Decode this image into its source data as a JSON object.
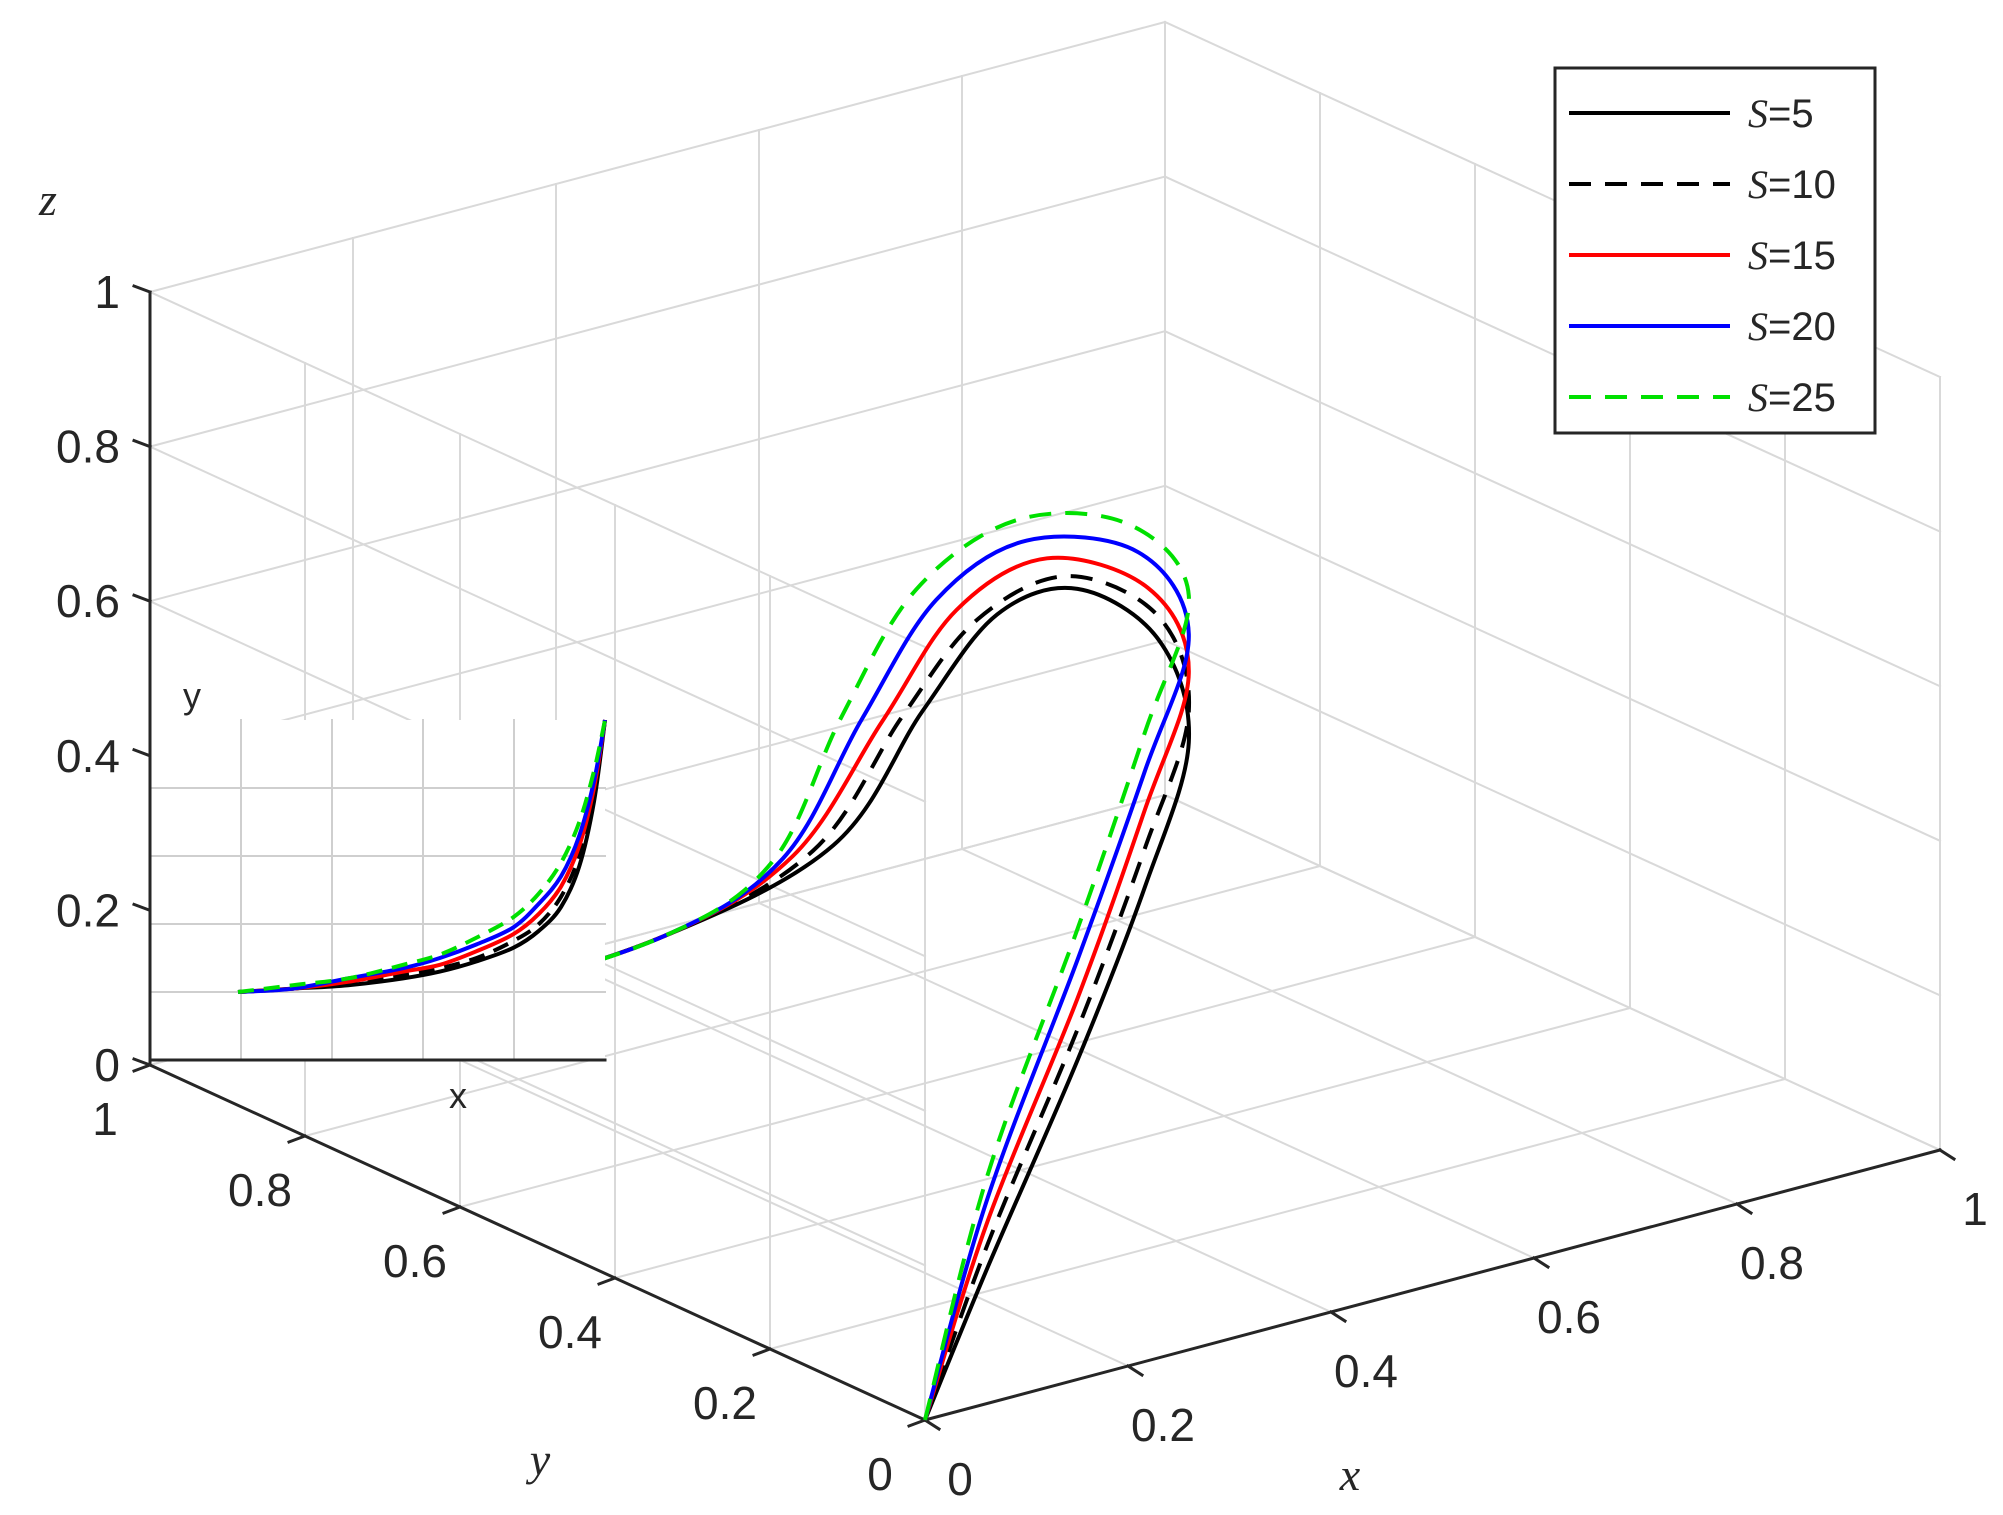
{
  "chart_data": {
    "type": "line",
    "projection": "3d",
    "title": "",
    "axes": {
      "x": {
        "label": "x",
        "lim": [
          0,
          1
        ],
        "ticks": [
          0,
          0.2,
          0.4,
          0.6,
          0.8,
          1
        ],
        "tick_labels": [
          "0",
          "0.2",
          "0.4",
          "0.6",
          "0.8",
          "1"
        ]
      },
      "y": {
        "label": "y",
        "lim": [
          0,
          1
        ],
        "ticks": [
          0,
          0.2,
          0.4,
          0.6,
          0.8,
          1
        ],
        "tick_labels": [
          "0",
          "0.2",
          "0.4",
          "0.6",
          "0.8",
          "1"
        ]
      },
      "z": {
        "label": "z",
        "lim": [
          0,
          1
        ],
        "ticks": [
          0,
          0.2,
          0.4,
          0.6,
          0.8,
          1
        ],
        "tick_labels": [
          "0",
          "0.2",
          "0.4",
          "0.6",
          "0.8",
          "1"
        ]
      }
    },
    "grid": true,
    "legend": {
      "placement": "top-right",
      "entries": [
        {
          "symbol": "S",
          "label": "=5"
        },
        {
          "symbol": "S",
          "label": "=10"
        },
        {
          "symbol": "S",
          "label": "=15"
        },
        {
          "symbol": "S",
          "label": "=20"
        },
        {
          "symbol": "S",
          "label": "=25"
        }
      ]
    },
    "series": [
      {
        "name": "S=5",
        "S": 5,
        "color": "#000000",
        "dash": "solid",
        "x": [
          0.0,
          0.1,
          0.25,
          0.4,
          0.55,
          0.65,
          0.7,
          0.72,
          0.7,
          0.62,
          0.45,
          0.25,
          0.15
        ],
        "y": [
          0.0,
          0.05,
          0.13,
          0.24,
          0.38,
          0.55,
          0.72,
          0.85,
          0.92,
          0.93,
          0.93,
          0.94,
          0.95
        ],
        "z": [
          0.0,
          0.14,
          0.32,
          0.44,
          0.51,
          0.53,
          0.5,
          0.4,
          0.25,
          0.1,
          0.04,
          0.02,
          0.02
        ]
      },
      {
        "name": "S=10",
        "S": 10,
        "color": "#000000",
        "dash": "dashed",
        "x": [
          0.0,
          0.1,
          0.25,
          0.4,
          0.55,
          0.65,
          0.69,
          0.7,
          0.68,
          0.6,
          0.45,
          0.25,
          0.15
        ],
        "y": [
          0.0,
          0.05,
          0.13,
          0.24,
          0.38,
          0.55,
          0.72,
          0.85,
          0.92,
          0.93,
          0.93,
          0.94,
          0.95
        ],
        "z": [
          0.0,
          0.17,
          0.36,
          0.49,
          0.55,
          0.56,
          0.52,
          0.4,
          0.25,
          0.1,
          0.04,
          0.02,
          0.02
        ]
      },
      {
        "name": "S=15",
        "S": 15,
        "color": "#ff0000",
        "dash": "solid",
        "x": [
          0.0,
          0.1,
          0.25,
          0.4,
          0.55,
          0.64,
          0.67,
          0.68,
          0.66,
          0.58,
          0.45,
          0.25,
          0.15
        ],
        "y": [
          0.0,
          0.05,
          0.13,
          0.24,
          0.38,
          0.55,
          0.72,
          0.85,
          0.92,
          0.93,
          0.93,
          0.94,
          0.95
        ],
        "z": [
          0.0,
          0.2,
          0.4,
          0.54,
          0.6,
          0.6,
          0.55,
          0.42,
          0.25,
          0.1,
          0.04,
          0.02,
          0.02
        ]
      },
      {
        "name": "S=20",
        "S": 20,
        "color": "#0000ff",
        "dash": "solid",
        "x": [
          0.0,
          0.1,
          0.25,
          0.4,
          0.55,
          0.63,
          0.65,
          0.66,
          0.64,
          0.57,
          0.45,
          0.25,
          0.15
        ],
        "y": [
          0.0,
          0.05,
          0.13,
          0.24,
          0.38,
          0.55,
          0.72,
          0.85,
          0.92,
          0.93,
          0.93,
          0.94,
          0.95
        ],
        "z": [
          0.0,
          0.23,
          0.45,
          0.59,
          0.65,
          0.65,
          0.58,
          0.44,
          0.26,
          0.1,
          0.04,
          0.02,
          0.02
        ]
      },
      {
        "name": "S=25",
        "S": 25,
        "color": "#00e000",
        "dash": "dashed",
        "x": [
          0.0,
          0.1,
          0.25,
          0.4,
          0.55,
          0.62,
          0.64,
          0.64,
          0.62,
          0.56,
          0.45,
          0.25,
          0.15
        ],
        "y": [
          0.0,
          0.05,
          0.13,
          0.24,
          0.38,
          0.55,
          0.72,
          0.85,
          0.92,
          0.93,
          0.93,
          0.94,
          0.95
        ],
        "z": [
          0.0,
          0.26,
          0.49,
          0.64,
          0.7,
          0.69,
          0.61,
          0.46,
          0.27,
          0.1,
          0.04,
          0.02,
          0.02
        ]
      }
    ],
    "inset": {
      "description_axes": {
        "x": "x",
        "y": "y"
      },
      "type": "line",
      "grid": true,
      "x": [
        0.0,
        0.15,
        0.3,
        0.45,
        0.55,
        0.65,
        0.75,
        0.82,
        0.88,
        0.93,
        0.97,
        1.0
      ],
      "series": [
        {
          "name": "S=5",
          "y": [
            0.2,
            0.21,
            0.22,
            0.24,
            0.26,
            0.29,
            0.33,
            0.38,
            0.45,
            0.57,
            0.76,
            1.0
          ]
        },
        {
          "name": "S=10",
          "y": [
            0.2,
            0.21,
            0.23,
            0.25,
            0.27,
            0.3,
            0.35,
            0.4,
            0.48,
            0.6,
            0.78,
            1.0
          ]
        },
        {
          "name": "S=15",
          "y": [
            0.2,
            0.21,
            0.23,
            0.26,
            0.28,
            0.32,
            0.37,
            0.43,
            0.51,
            0.63,
            0.8,
            1.0
          ]
        },
        {
          "name": "S=20",
          "y": [
            0.2,
            0.21,
            0.24,
            0.27,
            0.3,
            0.34,
            0.39,
            0.46,
            0.54,
            0.66,
            0.82,
            1.0
          ]
        },
        {
          "name": "S=25",
          "y": [
            0.2,
            0.22,
            0.24,
            0.28,
            0.31,
            0.36,
            0.42,
            0.49,
            0.58,
            0.7,
            0.85,
            1.0
          ]
        }
      ]
    }
  }
}
